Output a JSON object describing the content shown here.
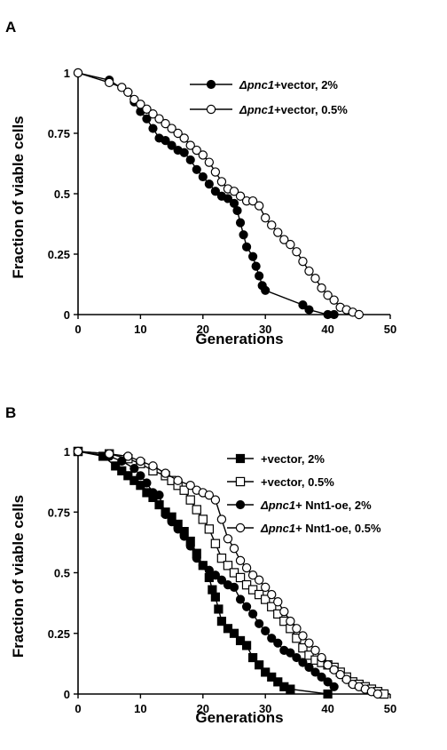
{
  "chart_data": [
    {
      "panel_label": "A",
      "type": "line",
      "xlabel": "Generations",
      "ylabel": "Fraction of viable cells",
      "xlim": [
        0,
        50
      ],
      "ylim": [
        0,
        1
      ],
      "xticks": [
        "0",
        "10",
        "20",
        "30",
        "40",
        "50"
      ],
      "yticks": [
        "0",
        "0.25",
        "0.5",
        "0.75",
        "1"
      ],
      "legend_position": "top-right",
      "series": [
        {
          "name": "+vector, 2%",
          "name_prefix_italic": "Δpnc1",
          "marker": "filled-circle",
          "points": [
            [
              0,
              1.0
            ],
            [
              5,
              0.97
            ],
            [
              8,
              0.92
            ],
            [
              9,
              0.88
            ],
            [
              10,
              0.84
            ],
            [
              11,
              0.81
            ],
            [
              12,
              0.77
            ],
            [
              13,
              0.73
            ],
            [
              14,
              0.72
            ],
            [
              15,
              0.7
            ],
            [
              16,
              0.68
            ],
            [
              17,
              0.67
            ],
            [
              18,
              0.64
            ],
            [
              19,
              0.6
            ],
            [
              20,
              0.57
            ],
            [
              21,
              0.54
            ],
            [
              22,
              0.51
            ],
            [
              23,
              0.49
            ],
            [
              24,
              0.48
            ],
            [
              25,
              0.46
            ],
            [
              25.5,
              0.43
            ],
            [
              26,
              0.38
            ],
            [
              26.5,
              0.33
            ],
            [
              27,
              0.28
            ],
            [
              28,
              0.24
            ],
            [
              28.5,
              0.2
            ],
            [
              29,
              0.16
            ],
            [
              29.5,
              0.12
            ],
            [
              30,
              0.1
            ],
            [
              36,
              0.04
            ],
            [
              37,
              0.02
            ],
            [
              40,
              0.0
            ],
            [
              41,
              0.0
            ]
          ]
        },
        {
          "name": "+vector, 0.5%",
          "name_prefix_italic": "Δpnc1",
          "marker": "open-circle",
          "points": [
            [
              0,
              1.0
            ],
            [
              5,
              0.96
            ],
            [
              7,
              0.94
            ],
            [
              8,
              0.92
            ],
            [
              9,
              0.89
            ],
            [
              10,
              0.87
            ],
            [
              11,
              0.85
            ],
            [
              12,
              0.83
            ],
            [
              13,
              0.81
            ],
            [
              14,
              0.79
            ],
            [
              15,
              0.77
            ],
            [
              16,
              0.75
            ],
            [
              17,
              0.73
            ],
            [
              18,
              0.7
            ],
            [
              19,
              0.68
            ],
            [
              20,
              0.66
            ],
            [
              21,
              0.63
            ],
            [
              22,
              0.59
            ],
            [
              23,
              0.55
            ],
            [
              24,
              0.52
            ],
            [
              25,
              0.51
            ],
            [
              26,
              0.49
            ],
            [
              27,
              0.47
            ],
            [
              28,
              0.47
            ],
            [
              29,
              0.45
            ],
            [
              30,
              0.4
            ],
            [
              31,
              0.37
            ],
            [
              32,
              0.34
            ],
            [
              33,
              0.31
            ],
            [
              34,
              0.29
            ],
            [
              35,
              0.26
            ],
            [
              36,
              0.22
            ],
            [
              37,
              0.18
            ],
            [
              38,
              0.15
            ],
            [
              39,
              0.11
            ],
            [
              40,
              0.08
            ],
            [
              41,
              0.06
            ],
            [
              42,
              0.03
            ],
            [
              43,
              0.02
            ],
            [
              44,
              0.01
            ],
            [
              45,
              0.0
            ]
          ]
        }
      ]
    },
    {
      "panel_label": "B",
      "type": "line",
      "xlabel": "Generations",
      "ylabel": "Fraction of viable cells",
      "xlim": [
        0,
        50
      ],
      "ylim": [
        0,
        1
      ],
      "xticks": [
        "0",
        "10",
        "20",
        "30",
        "40",
        "50"
      ],
      "yticks": [
        "0",
        "0.25",
        "0.5",
        "0.75",
        "1"
      ],
      "legend_position": "top-right",
      "series": [
        {
          "name": "+vector,  2%",
          "name_prefix_italic": "",
          "marker": "filled-square",
          "points": [
            [
              0,
              1.0
            ],
            [
              4,
              0.98
            ],
            [
              6,
              0.94
            ],
            [
              7,
              0.92
            ],
            [
              8,
              0.9
            ],
            [
              9,
              0.88
            ],
            [
              10,
              0.86
            ],
            [
              11,
              0.83
            ],
            [
              12,
              0.81
            ],
            [
              13,
              0.78
            ],
            [
              14,
              0.75
            ],
            [
              15,
              0.73
            ],
            [
              16,
              0.7
            ],
            [
              17,
              0.67
            ],
            [
              18,
              0.63
            ],
            [
              19,
              0.58
            ],
            [
              20,
              0.53
            ],
            [
              21,
              0.48
            ],
            [
              21.5,
              0.43
            ],
            [
              22,
              0.4
            ],
            [
              22.5,
              0.35
            ],
            [
              23,
              0.3
            ],
            [
              24,
              0.27
            ],
            [
              25,
              0.25
            ],
            [
              26,
              0.22
            ],
            [
              27,
              0.2
            ],
            [
              28,
              0.15
            ],
            [
              29,
              0.12
            ],
            [
              30,
              0.09
            ],
            [
              31,
              0.07
            ],
            [
              32,
              0.05
            ],
            [
              33,
              0.03
            ],
            [
              34,
              0.02
            ],
            [
              40,
              0.0
            ]
          ]
        },
        {
          "name": "+vector,  0.5%",
          "name_prefix_italic": "",
          "marker": "open-square",
          "points": [
            [
              0,
              1.0
            ],
            [
              5,
              0.99
            ],
            [
              8,
              0.97
            ],
            [
              10,
              0.95
            ],
            [
              12,
              0.92
            ],
            [
              14,
              0.9
            ],
            [
              15,
              0.88
            ],
            [
              16,
              0.86
            ],
            [
              17,
              0.84
            ],
            [
              18,
              0.8
            ],
            [
              19,
              0.76
            ],
            [
              20,
              0.72
            ],
            [
              21,
              0.68
            ],
            [
              22,
              0.62
            ],
            [
              23,
              0.56
            ],
            [
              24,
              0.53
            ],
            [
              25,
              0.5
            ],
            [
              26,
              0.48
            ],
            [
              27,
              0.45
            ],
            [
              28,
              0.43
            ],
            [
              29,
              0.41
            ],
            [
              30,
              0.39
            ],
            [
              31,
              0.36
            ],
            [
              32,
              0.33
            ],
            [
              33,
              0.3
            ],
            [
              34,
              0.27
            ],
            [
              35,
              0.23
            ],
            [
              36,
              0.19
            ],
            [
              37,
              0.16
            ],
            [
              38,
              0.14
            ],
            [
              39,
              0.13
            ],
            [
              40,
              0.12
            ],
            [
              41,
              0.11
            ],
            [
              42,
              0.09
            ],
            [
              43,
              0.07
            ],
            [
              44,
              0.05
            ],
            [
              45,
              0.04
            ],
            [
              46,
              0.03
            ],
            [
              47,
              0.02
            ],
            [
              48,
              0.01
            ],
            [
              49,
              0.0
            ]
          ]
        },
        {
          "name": "+ Nnt1-oe, 2%",
          "name_prefix_italic": "Δpnc1",
          "marker": "filled-circle",
          "points": [
            [
              0,
              1.0
            ],
            [
              5,
              0.98
            ],
            [
              7,
              0.96
            ],
            [
              9,
              0.93
            ],
            [
              10,
              0.9
            ],
            [
              11,
              0.87
            ],
            [
              12,
              0.83
            ],
            [
              13,
              0.82
            ],
            [
              14,
              0.74
            ],
            [
              15,
              0.71
            ],
            [
              16,
              0.68
            ],
            [
              17,
              0.65
            ],
            [
              18,
              0.61
            ],
            [
              19,
              0.56
            ],
            [
              20,
              0.53
            ],
            [
              21,
              0.51
            ],
            [
              22,
              0.49
            ],
            [
              23,
              0.47
            ],
            [
              24,
              0.45
            ],
            [
              25,
              0.44
            ],
            [
              26,
              0.39
            ],
            [
              27,
              0.36
            ],
            [
              28,
              0.33
            ],
            [
              29,
              0.29
            ],
            [
              30,
              0.26
            ],
            [
              31,
              0.23
            ],
            [
              32,
              0.21
            ],
            [
              33,
              0.18
            ],
            [
              34,
              0.17
            ],
            [
              35,
              0.15
            ],
            [
              36,
              0.13
            ],
            [
              37,
              0.11
            ],
            [
              38,
              0.09
            ],
            [
              39,
              0.07
            ],
            [
              40,
              0.05
            ],
            [
              41,
              0.03
            ]
          ]
        },
        {
          "name": "+ Nnt1-oe, 0.5%",
          "name_prefix_italic": "Δpnc1",
          "marker": "open-circle",
          "points": [
            [
              0,
              1.0
            ],
            [
              5,
              0.99
            ],
            [
              8,
              0.98
            ],
            [
              10,
              0.96
            ],
            [
              12,
              0.94
            ],
            [
              14,
              0.91
            ],
            [
              16,
              0.88
            ],
            [
              18,
              0.86
            ],
            [
              19,
              0.84
            ],
            [
              20,
              0.83
            ],
            [
              21,
              0.82
            ],
            [
              22,
              0.8
            ],
            [
              23,
              0.72
            ],
            [
              24,
              0.64
            ],
            [
              25,
              0.6
            ],
            [
              26,
              0.55
            ],
            [
              27,
              0.52
            ],
            [
              28,
              0.49
            ],
            [
              29,
              0.47
            ],
            [
              30,
              0.44
            ],
            [
              31,
              0.41
            ],
            [
              32,
              0.38
            ],
            [
              33,
              0.34
            ],
            [
              34,
              0.3
            ],
            [
              35,
              0.27
            ],
            [
              36,
              0.24
            ],
            [
              37,
              0.21
            ],
            [
              38,
              0.18
            ],
            [
              39,
              0.15
            ],
            [
              40,
              0.12
            ],
            [
              41,
              0.1
            ],
            [
              42,
              0.08
            ],
            [
              43,
              0.06
            ],
            [
              44,
              0.04
            ],
            [
              45,
              0.03
            ],
            [
              46,
              0.02
            ],
            [
              47,
              0.01
            ],
            [
              48,
              0.0
            ]
          ]
        }
      ]
    }
  ]
}
